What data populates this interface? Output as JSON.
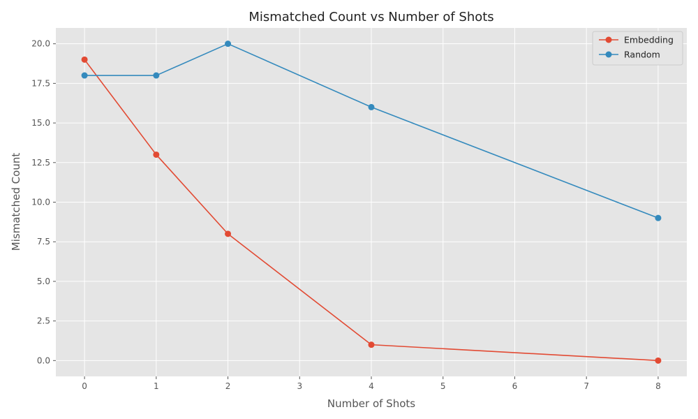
{
  "chart_data": {
    "type": "line",
    "title": "Mismatched Count vs Number of Shots",
    "xlabel": "Number of Shots",
    "ylabel": "Mismatched Count",
    "x": [
      0,
      1,
      2,
      4,
      8
    ],
    "xlim": [
      -0.4,
      8.4
    ],
    "ylim": [
      -1,
      21
    ],
    "xticks": [
      0,
      1,
      2,
      3,
      4,
      5,
      6,
      7,
      8
    ],
    "yticks": [
      0.0,
      2.5,
      5.0,
      7.5,
      10.0,
      12.5,
      15.0,
      17.5,
      20.0
    ],
    "ytick_labels": [
      "0.0",
      "2.5",
      "5.0",
      "7.5",
      "10.0",
      "12.5",
      "15.0",
      "17.5",
      "20.0"
    ],
    "grid": true,
    "legend_position": "top-right",
    "series": [
      {
        "name": "Embedding",
        "color": "#E24A33",
        "values": [
          19,
          13,
          8,
          1,
          0
        ]
      },
      {
        "name": "Random",
        "color": "#348ABD",
        "values": [
          18,
          18,
          20,
          16,
          9
        ]
      }
    ]
  }
}
